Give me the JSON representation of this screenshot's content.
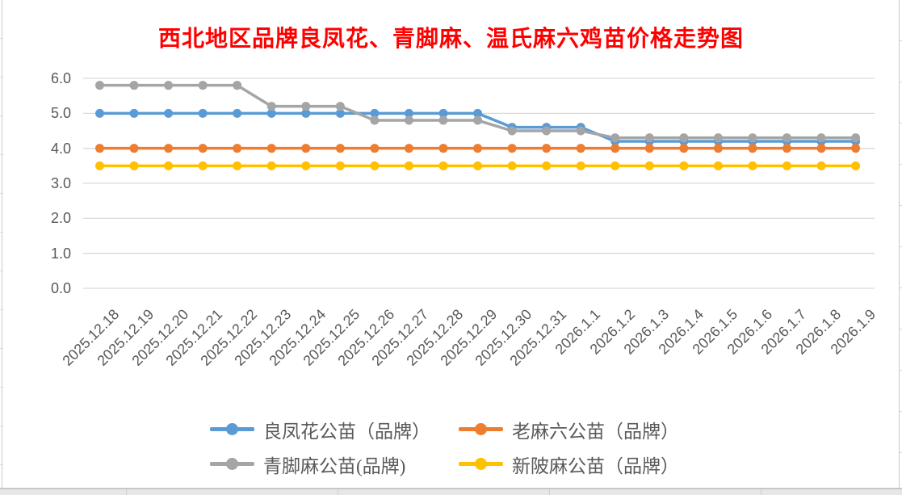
{
  "title": {
    "text": "西北地区品牌良凤花、青脚麻、温氏麻六鸡苗价格走势图",
    "color": "#ff0000"
  },
  "colors": {
    "gridline": "#d9d9d9",
    "axis_text": "#595959",
    "sheet_edge": "#c9c9c9"
  },
  "chart_data": {
    "type": "line",
    "title": "西北地区品牌良凤花、青脚麻、温氏麻六鸡苗价格走势图",
    "xlabel": "",
    "ylabel": "",
    "ylim": [
      0.0,
      6.0
    ],
    "y_ticks": [
      "6.0",
      "5.0",
      "4.0",
      "3.0",
      "2.0",
      "1.0",
      "0.0"
    ],
    "grid": true,
    "legend_position": "bottom",
    "marker": "circle",
    "categories": [
      "2025.12.18",
      "2025.12.19",
      "2025.12.20",
      "2025.12.21",
      "2025.12.22",
      "2025.12.23",
      "2025.12.24",
      "2025.12.25",
      "2025.12.26",
      "2025.12.27",
      "2025.12.28",
      "2025.12.29",
      "2025.12.30",
      "2025.12.31",
      "2026.1.1",
      "2026.1.2",
      "2026.1.3",
      "2026.1.4",
      "2026.1.5",
      "2026.1.6",
      "2026.1.7",
      "2026.1.8",
      "2026.1.9"
    ],
    "series": [
      {
        "id": "liangfenghua",
        "name": "良凤花公苗（品牌）",
        "color": "#5b9bd5",
        "values": [
          5.0,
          5.0,
          5.0,
          5.0,
          5.0,
          5.0,
          5.0,
          5.0,
          5.0,
          5.0,
          5.0,
          5.0,
          4.6,
          4.6,
          4.6,
          4.2,
          4.2,
          4.2,
          4.2,
          4.2,
          4.2,
          4.2,
          4.2
        ]
      },
      {
        "id": "laomaliu",
        "name": "老麻六公苗（品牌）",
        "color": "#ed7d31",
        "values": [
          4.0,
          4.0,
          4.0,
          4.0,
          4.0,
          4.0,
          4.0,
          4.0,
          4.0,
          4.0,
          4.0,
          4.0,
          4.0,
          4.0,
          4.0,
          4.0,
          4.0,
          4.0,
          4.0,
          4.0,
          4.0,
          4.0,
          4.0
        ]
      },
      {
        "id": "qingjiaoma",
        "name": "青脚麻公苗(品牌)",
        "color": "#a5a5a5",
        "values": [
          5.8,
          5.8,
          5.8,
          5.8,
          5.8,
          5.2,
          5.2,
          5.2,
          4.8,
          4.8,
          4.8,
          4.8,
          4.5,
          4.5,
          4.5,
          4.3,
          4.3,
          4.3,
          4.3,
          4.3,
          4.3,
          4.3,
          4.3
        ]
      },
      {
        "id": "xinpima",
        "name": "新陂麻公苗（品牌）",
        "color": "#ffc000",
        "values": [
          3.5,
          3.5,
          3.5,
          3.5,
          3.5,
          3.5,
          3.5,
          3.5,
          3.5,
          3.5,
          3.5,
          3.5,
          3.5,
          3.5,
          3.5,
          3.5,
          3.5,
          3.5,
          3.5,
          3.5,
          3.5,
          3.5,
          3.5
        ]
      }
    ]
  }
}
